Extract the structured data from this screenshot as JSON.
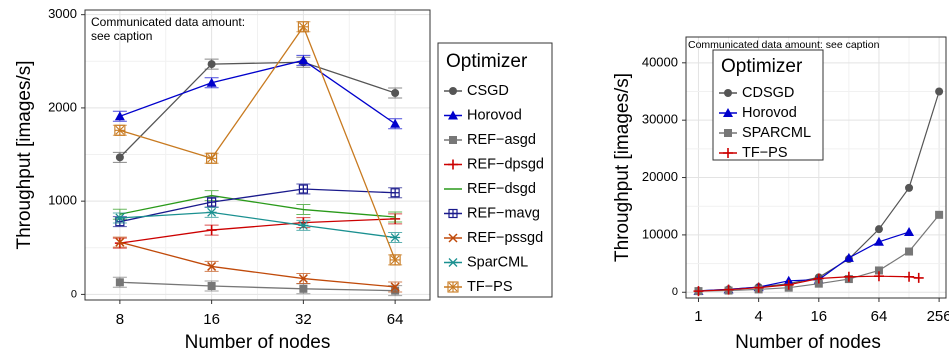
{
  "chart_data": [
    {
      "type": "line",
      "annotation": [
        "Communicated data amount:",
        "see caption"
      ],
      "xlabel": "Number of nodes",
      "ylabel": "Throughput [images/s]",
      "x_scale": "log2",
      "x": [
        8,
        16,
        32,
        64
      ],
      "x_ticks": [
        "8",
        "16",
        "32",
        "64"
      ],
      "y_ticks": [
        0,
        1000,
        2000,
        3000
      ],
      "ylim": [
        -60,
        3050
      ],
      "grid": true,
      "legend_title": "Optimizer",
      "legend_position": "outside-right",
      "series": [
        {
          "name": "CSGD",
          "color": "#555555",
          "marker": "circle",
          "values": [
            1470,
            2470,
            2490,
            2160
          ]
        },
        {
          "name": "Horovod",
          "color": "#0000cc",
          "marker": "triangle",
          "values": [
            1910,
            2270,
            2510,
            1830
          ]
        },
        {
          "name": "REF−asgd",
          "color": "#777777",
          "marker": "square",
          "values": [
            130,
            90,
            60,
            40
          ]
        },
        {
          "name": "REF−dpsgd",
          "color": "#cc0000",
          "marker": "plus",
          "values": [
            550,
            690,
            770,
            810
          ]
        },
        {
          "name": "REF−dsgd",
          "color": "#2a9a1a",
          "marker": "none",
          "values": [
            860,
            1060,
            910,
            830
          ]
        },
        {
          "name": "REF−mavg",
          "color": "#1a1a8c",
          "marker": "boxplus",
          "values": [
            780,
            990,
            1130,
            1090
          ]
        },
        {
          "name": "REF−pssgd",
          "color": "#c04a0a",
          "marker": "x",
          "values": [
            560,
            300,
            170,
            80
          ]
        },
        {
          "name": "SparCML",
          "color": "#1a9090",
          "marker": "star",
          "values": [
            820,
            880,
            740,
            610
          ]
        },
        {
          "name": "TF−PS",
          "color": "#c87a20",
          "marker": "starbox",
          "values": [
            1760,
            1460,
            2870,
            370
          ]
        }
      ]
    },
    {
      "type": "line",
      "annotation": [
        "Communicated data amount: see caption"
      ],
      "xlabel": "Number of nodes",
      "ylabel": "Throughput [images/s]",
      "x_scale": "log2",
      "x_ticks": [
        "1",
        "4",
        "16",
        "64",
        "256"
      ],
      "x_tick_values": [
        1,
        4,
        16,
        64,
        256
      ],
      "y_ticks": [
        0,
        10000,
        20000,
        30000,
        40000
      ],
      "xlim": [
        0.75,
        300
      ],
      "ylim": [
        -1000,
        44500
      ],
      "grid": true,
      "legend_title": "Optimizer",
      "legend_position": "top-left",
      "series": [
        {
          "name": "CDSGD",
          "color": "#555555",
          "marker": "circle",
          "x": [
            1,
            2,
            4,
            8,
            16,
            32,
            64,
            128,
            256
          ],
          "values": [
            250,
            500,
            900,
            1500,
            2600,
            5800,
            11000,
            18200,
            35000
          ]
        },
        {
          "name": "Horovod",
          "color": "#0000cc",
          "marker": "triangle",
          "x": [
            1,
            2,
            4,
            8,
            16,
            32,
            64,
            128
          ],
          "values": [
            250,
            500,
            900,
            2000,
            2200,
            6000,
            8800,
            10500
          ]
        },
        {
          "name": "SPARCML",
          "color": "#777777",
          "marker": "square",
          "x": [
            1,
            2,
            4,
            8,
            16,
            32,
            64,
            128,
            256
          ],
          "values": [
            200,
            300,
            500,
            800,
            1500,
            2300,
            3800,
            7100,
            13500
          ]
        },
        {
          "name": "TF−PS",
          "color": "#cc0000",
          "marker": "plus",
          "x": [
            1,
            2,
            4,
            8,
            16,
            32,
            64,
            128,
            160
          ],
          "values": [
            200,
            450,
            800,
            1300,
            2400,
            2700,
            2800,
            2700,
            2500
          ]
        }
      ]
    }
  ]
}
